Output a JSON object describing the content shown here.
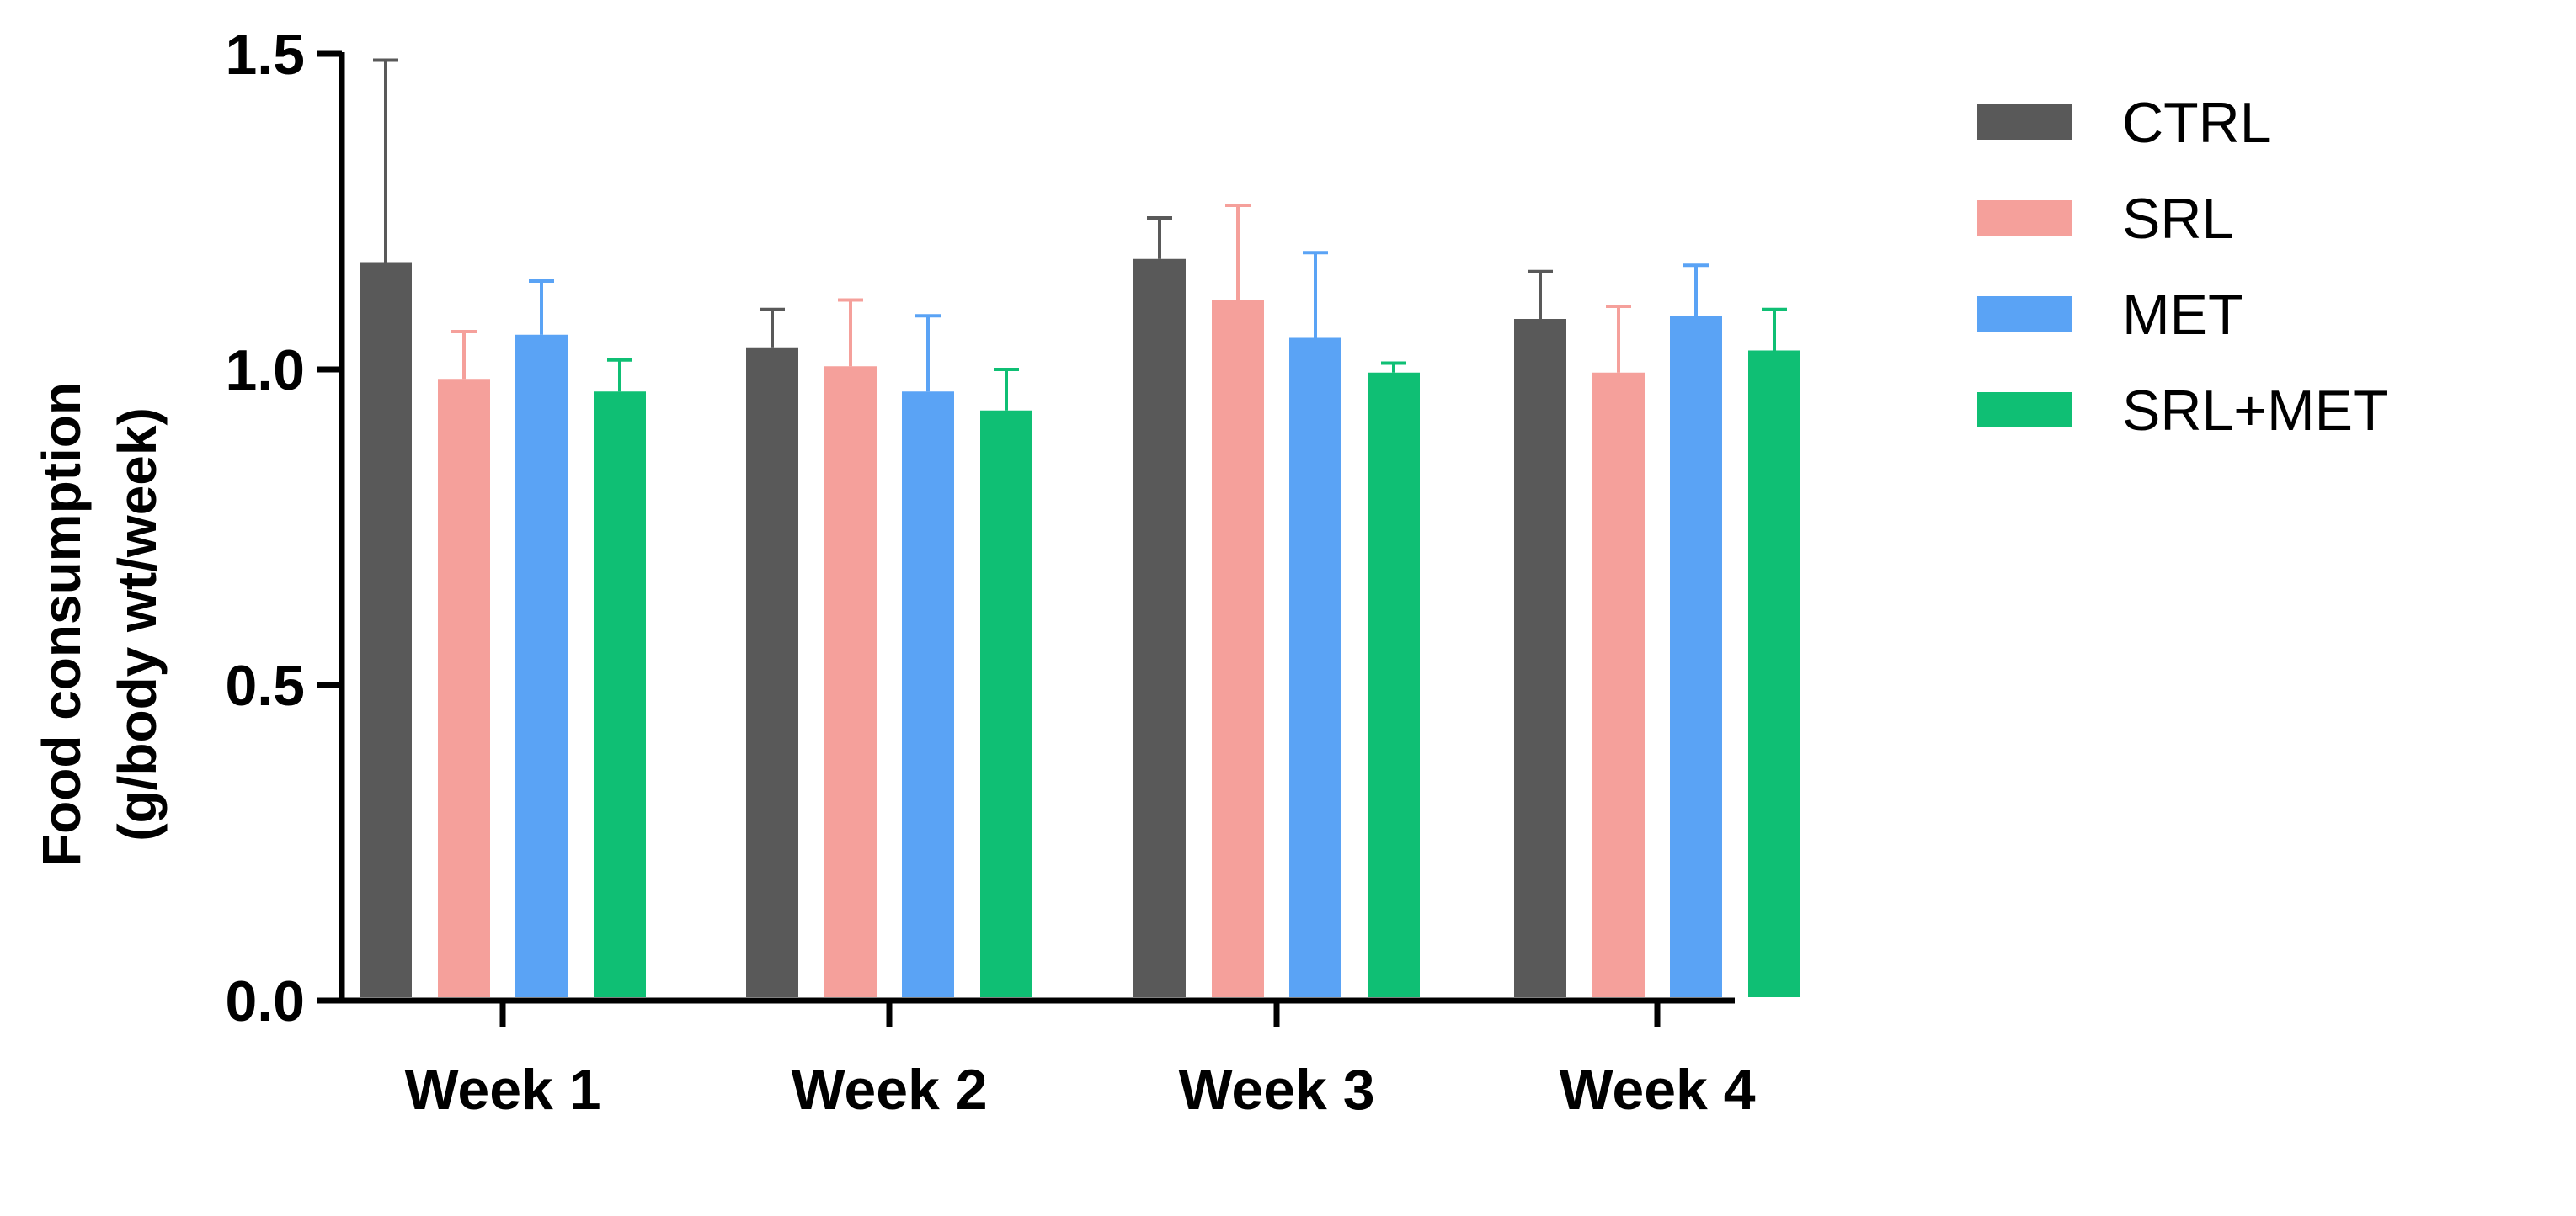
{
  "chart_data": {
    "type": "bar",
    "title": "",
    "xlabel": "",
    "ylabel_line1": "Food consumption",
    "ylabel_line2": "(g/body wt/week)",
    "ylim": [
      0,
      1.5
    ],
    "yticks": [
      0.0,
      0.5,
      1.0,
      1.5
    ],
    "ytick_labels": [
      "0.0",
      "0.5",
      "1.0",
      "1.5"
    ],
    "categories": [
      "Week 1",
      "Week 2",
      "Week 3",
      "Week 4"
    ],
    "legend_position": "top-right",
    "series": [
      {
        "name": "CTRL",
        "color": "#595959",
        "values": [
          1.17,
          1.035,
          1.175,
          1.08
        ],
        "errors": [
          0.32,
          0.06,
          0.065,
          0.075
        ]
      },
      {
        "name": "SRL",
        "color": "#F5A09B",
        "values": [
          0.985,
          1.005,
          1.11,
          0.995
        ],
        "errors": [
          0.075,
          0.105,
          0.15,
          0.105
        ]
      },
      {
        "name": "MET",
        "color": "#5AA3F5",
        "values": [
          1.055,
          0.965,
          1.05,
          1.085
        ],
        "errors": [
          0.085,
          0.12,
          0.135,
          0.08
        ]
      },
      {
        "name": "SRL+MET",
        "color": "#0FBF74",
        "values": [
          0.965,
          0.935,
          0.995,
          1.03
        ],
        "errors": [
          0.05,
          0.065,
          0.015,
          0.065
        ]
      }
    ]
  }
}
